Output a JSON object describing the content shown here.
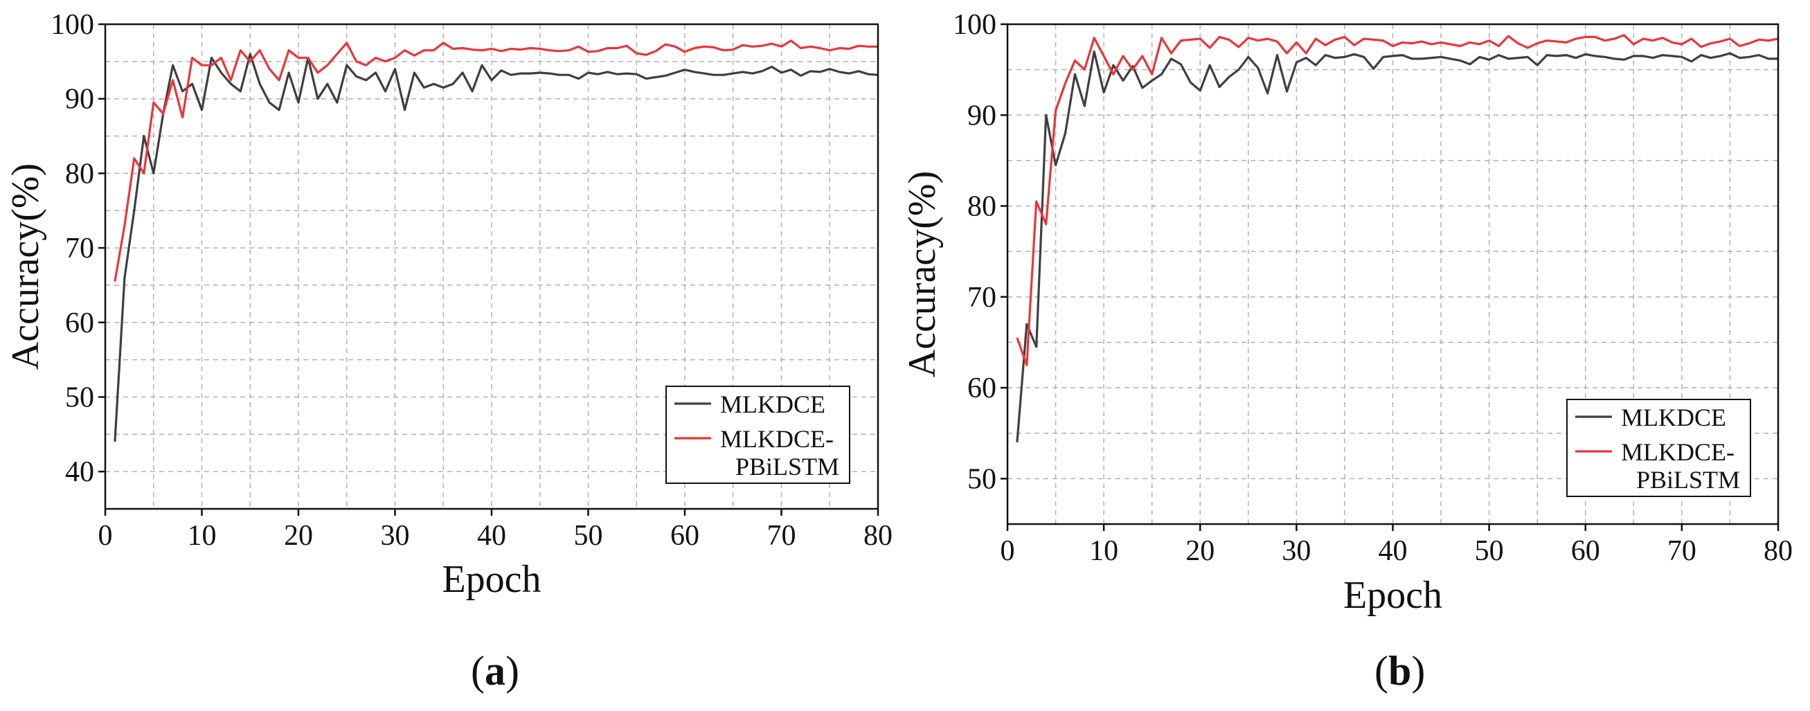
{
  "colors": {
    "series_1": "#3f3f3f",
    "series_2": "#e8363a",
    "grid": "#b0b0b0"
  },
  "captions": [
    {
      "open": "(",
      "letter": "a",
      "close": ")"
    },
    {
      "open": "(",
      "letter": "b",
      "close": ")"
    }
  ],
  "chart_data": [
    {
      "type": "line",
      "xlabel": "Epoch",
      "ylabel": "Accuracy(%)",
      "xlim": [
        0,
        80
      ],
      "ylim": [
        35,
        100
      ],
      "xticks": [
        0,
        10,
        20,
        30,
        40,
        50,
        60,
        70,
        80
      ],
      "yticks": [
        40,
        50,
        60,
        70,
        80,
        90,
        100
      ],
      "grid": true,
      "legend_position": "bottom-right",
      "series": [
        {
          "name": "MLKDCE",
          "color": "#3f3f3f",
          "x": [
            1,
            2,
            3,
            4,
            5,
            6,
            7,
            8,
            9,
            10,
            11,
            12,
            13,
            14,
            15,
            16,
            17,
            18,
            19,
            20,
            21,
            22,
            23,
            24,
            25,
            26,
            27,
            28,
            29,
            30,
            31,
            32,
            33,
            34,
            35,
            36,
            37,
            38,
            39,
            40,
            41,
            42,
            43,
            44,
            45,
            46,
            47,
            48,
            49,
            50,
            51,
            52,
            53,
            54,
            55,
            56,
            57,
            58,
            59,
            60,
            61,
            62,
            63,
            64,
            65,
            66,
            67,
            68,
            69,
            70,
            71,
            72,
            73,
            74,
            75,
            76,
            77,
            78,
            79,
            80
          ],
          "values": [
            44,
            66,
            75,
            85,
            80,
            88,
            94.5,
            91,
            92,
            88.5,
            95.5,
            93.5,
            92,
            91,
            96,
            92,
            89.5,
            88.5,
            93.5,
            89.5,
            95.5,
            90,
            92,
            89.5,
            94.5,
            93,
            92.5,
            93.5,
            91,
            94,
            88.5,
            93.5,
            91.5,
            92,
            91.5,
            92,
            93.5,
            91,
            94.5,
            92.5,
            93.8,
            93.2,
            93.4,
            93.4,
            93.5,
            93.4,
            93.2,
            93.2,
            92.7,
            93.5,
            93.3,
            93.6,
            93.3,
            93.4,
            93.3,
            92.7,
            92.9,
            93.1,
            93.5,
            93.9,
            93.6,
            93.4,
            93.2,
            93.2,
            93.4,
            93.6,
            93.4,
            93.7,
            94.3,
            93.5,
            93.9,
            93.1,
            93.7,
            93.6,
            94,
            93.6,
            93.4,
            93.7,
            93.3,
            93.2
          ]
        },
        {
          "name": "MLKDCE-PBiLSTM",
          "color": "#e8363a",
          "x": [
            1,
            2,
            3,
            4,
            5,
            6,
            7,
            8,
            9,
            10,
            11,
            12,
            13,
            14,
            15,
            16,
            17,
            18,
            19,
            20,
            21,
            22,
            23,
            24,
            25,
            26,
            27,
            28,
            29,
            30,
            31,
            32,
            33,
            34,
            35,
            36,
            37,
            38,
            39,
            40,
            41,
            42,
            43,
            44,
            45,
            46,
            47,
            48,
            49,
            50,
            51,
            52,
            53,
            54,
            55,
            56,
            57,
            58,
            59,
            60,
            61,
            62,
            63,
            64,
            65,
            66,
            67,
            68,
            69,
            70,
            71,
            72,
            73,
            74,
            75,
            76,
            77,
            78,
            79,
            80
          ],
          "values": [
            65.5,
            73,
            82,
            80,
            89.5,
            88,
            92.5,
            87.5,
            95.5,
            94.5,
            94.5,
            95.5,
            92.5,
            96.5,
            95,
            96.5,
            94,
            92.5,
            96.5,
            95.5,
            95.5,
            93.5,
            94.5,
            96,
            97.5,
            95,
            94.5,
            95.5,
            95,
            95.5,
            96.5,
            95.8,
            96.5,
            96.5,
            97.5,
            96.7,
            96.8,
            96.6,
            96.5,
            96.7,
            96.4,
            96.7,
            96.6,
            96.8,
            96.7,
            96.5,
            96.4,
            96.5,
            97,
            96.3,
            96.4,
            96.8,
            96.8,
            97.1,
            96.1,
            95.9,
            96.4,
            97.3,
            97,
            96.3,
            96.8,
            97,
            96.9,
            96.5,
            96.6,
            97.2,
            97,
            97.1,
            97.4,
            97,
            97.8,
            96.8,
            97,
            96.8,
            96.5,
            96.8,
            96.7,
            97.1,
            97,
            97
          ]
        }
      ]
    },
    {
      "type": "line",
      "xlabel": "Epoch",
      "ylabel": "Accuracy(%)",
      "xlim": [
        0,
        80
      ],
      "ylim": [
        45,
        100
      ],
      "xticks": [
        0,
        10,
        20,
        30,
        40,
        50,
        60,
        70,
        80
      ],
      "yticks": [
        50,
        60,
        70,
        80,
        90,
        100
      ],
      "grid": true,
      "legend_position": "bottom-right",
      "series": [
        {
          "name": "MLKDCE",
          "color": "#3f3f3f",
          "x": [
            1,
            2,
            3,
            4,
            5,
            6,
            7,
            8,
            9,
            10,
            11,
            12,
            13,
            14,
            15,
            16,
            17,
            18,
            19,
            20,
            21,
            22,
            23,
            24,
            25,
            26,
            27,
            28,
            29,
            30,
            31,
            32,
            33,
            34,
            35,
            36,
            37,
            38,
            39,
            40,
            41,
            42,
            43,
            44,
            45,
            46,
            47,
            48,
            49,
            50,
            51,
            52,
            53,
            54,
            55,
            56,
            57,
            58,
            59,
            60,
            61,
            62,
            63,
            64,
            65,
            66,
            67,
            68,
            69,
            70,
            71,
            72,
            73,
            74,
            75,
            76,
            77,
            78,
            79,
            80
          ],
          "values": [
            54,
            67,
            64.5,
            90,
            84.5,
            88,
            94.5,
            91,
            97,
            92.5,
            95.5,
            93.8,
            95.4,
            93,
            93.8,
            94.5,
            96.2,
            95.6,
            93.6,
            92.7,
            95.5,
            93.1,
            94.2,
            95,
            96.4,
            95.2,
            92.4,
            96.6,
            92.6,
            95.8,
            96.3,
            95.5,
            96.6,
            96.3,
            96.4,
            96.7,
            96.4,
            95.1,
            96.4,
            96.5,
            96.6,
            96.2,
            96.2,
            96.3,
            96.4,
            96.2,
            96,
            95.6,
            96.4,
            96.1,
            96.6,
            96.2,
            96.3,
            96.4,
            95.5,
            96.6,
            96.5,
            96.6,
            96.3,
            96.7,
            96.5,
            96.4,
            96.2,
            96.1,
            96.5,
            96.5,
            96.3,
            96.6,
            96.5,
            96.4,
            95.9,
            96.6,
            96.3,
            96.5,
            96.8,
            96.3,
            96.4,
            96.6,
            96.2,
            96.2
          ]
        },
        {
          "name": "MLKDCE-PBiLSTM",
          "color": "#e8363a",
          "x": [
            1,
            2,
            3,
            4,
            5,
            6,
            7,
            8,
            9,
            10,
            11,
            12,
            13,
            14,
            15,
            16,
            17,
            18,
            19,
            20,
            21,
            22,
            23,
            24,
            25,
            26,
            27,
            28,
            29,
            30,
            31,
            32,
            33,
            34,
            35,
            36,
            37,
            38,
            39,
            40,
            41,
            42,
            43,
            44,
            45,
            46,
            47,
            48,
            49,
            50,
            51,
            52,
            53,
            54,
            55,
            56,
            57,
            58,
            59,
            60,
            61,
            62,
            63,
            64,
            65,
            66,
            67,
            68,
            69,
            70,
            71,
            72,
            73,
            74,
            75,
            76,
            77,
            78,
            79,
            80
          ],
          "values": [
            65.5,
            62.5,
            80.5,
            78,
            90.5,
            93.5,
            96,
            95,
            98.5,
            96.5,
            94.5,
            96.5,
            95,
            96.5,
            94.5,
            98.5,
            96.8,
            98.2,
            98.3,
            98.4,
            97.4,
            98.6,
            98.3,
            97.5,
            98.5,
            98.2,
            98.4,
            98.1,
            96.8,
            98,
            96.8,
            98.4,
            97.7,
            98.3,
            98.6,
            97.7,
            98.4,
            98.3,
            98.2,
            97.6,
            98,
            97.9,
            98.1,
            97.8,
            98,
            97.8,
            97.6,
            98,
            97.8,
            98.2,
            97.6,
            98.7,
            97.9,
            97.4,
            97.9,
            98.2,
            98.1,
            98,
            98.4,
            98.6,
            98.6,
            98.2,
            98.4,
            98.8,
            97.8,
            98.4,
            98.2,
            98.5,
            98,
            97.8,
            98.4,
            97.5,
            97.9,
            98.1,
            98.4,
            97.6,
            97.9,
            98.3,
            98.2,
            98.4
          ]
        }
      ]
    }
  ]
}
